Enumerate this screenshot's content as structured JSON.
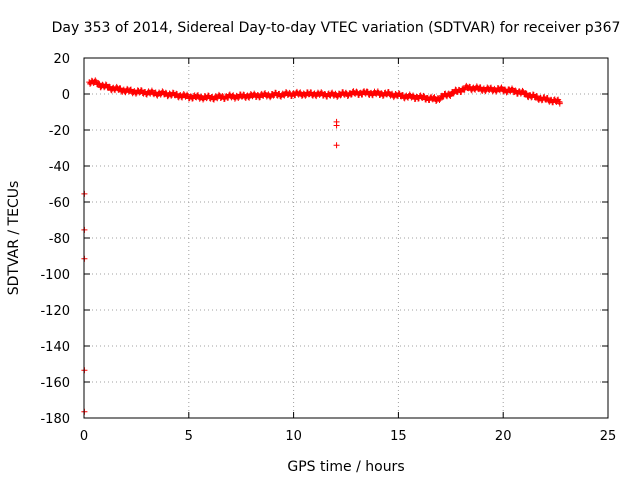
{
  "chart_data": {
    "type": "scatter",
    "title": "Day 353 of 2014, Sidereal Day-to-day VTEC variation (SDTVAR) for receiver p367",
    "xlabel": "GPS time / hours",
    "ylabel": "SDTVAR / TECUs",
    "xlim": [
      0,
      25
    ],
    "ylim": [
      -180,
      20
    ],
    "xticks": [
      0,
      5,
      10,
      15,
      20,
      25
    ],
    "yticks": [
      20,
      0,
      -20,
      -40,
      -60,
      -80,
      -100,
      -120,
      -140,
      -160,
      -180
    ],
    "grid": true,
    "marker": "+",
    "color": "#ff0000",
    "series": [
      {
        "name": "SDTVAR",
        "trend": [
          [
            0.25,
            7
          ],
          [
            0.5,
            6.5
          ],
          [
            0.8,
            5
          ],
          [
            1.2,
            3.5
          ],
          [
            1.7,
            2.5
          ],
          [
            2.2,
            1.5
          ],
          [
            2.8,
            1
          ],
          [
            3.3,
            0.5
          ],
          [
            4.0,
            0
          ],
          [
            5.0,
            -1.5
          ],
          [
            6.0,
            -2
          ],
          [
            7.0,
            -1.5
          ],
          [
            8.0,
            -1
          ],
          [
            9.0,
            -0.5
          ],
          [
            10.0,
            0
          ],
          [
            11.0,
            0
          ],
          [
            11.8,
            -0.5
          ],
          [
            12.5,
            0
          ],
          [
            13.0,
            0.5
          ],
          [
            13.5,
            0.5
          ],
          [
            14.5,
            0
          ],
          [
            15.5,
            -1.5
          ],
          [
            16.2,
            -2
          ],
          [
            16.8,
            -3
          ],
          [
            17.2,
            -1
          ],
          [
            17.8,
            1.5
          ],
          [
            18.3,
            3.5
          ],
          [
            18.8,
            3
          ],
          [
            19.3,
            2.5
          ],
          [
            19.8,
            2.5
          ],
          [
            20.3,
            2
          ],
          [
            20.8,
            1
          ],
          [
            21.3,
            -1
          ],
          [
            21.8,
            -2.5
          ],
          [
            22.3,
            -3.5
          ],
          [
            22.7,
            -4.5
          ]
        ],
        "outliers": [
          [
            12.05,
            -15.5
          ],
          [
            12.05,
            -17.5
          ],
          [
            12.05,
            -28.5
          ],
          [
            0.02,
            -55.5
          ],
          [
            0.02,
            -75.5
          ],
          [
            0.02,
            -91.5
          ],
          [
            0.02,
            -153.5
          ],
          [
            0.02,
            -176.5
          ]
        ]
      }
    ]
  }
}
